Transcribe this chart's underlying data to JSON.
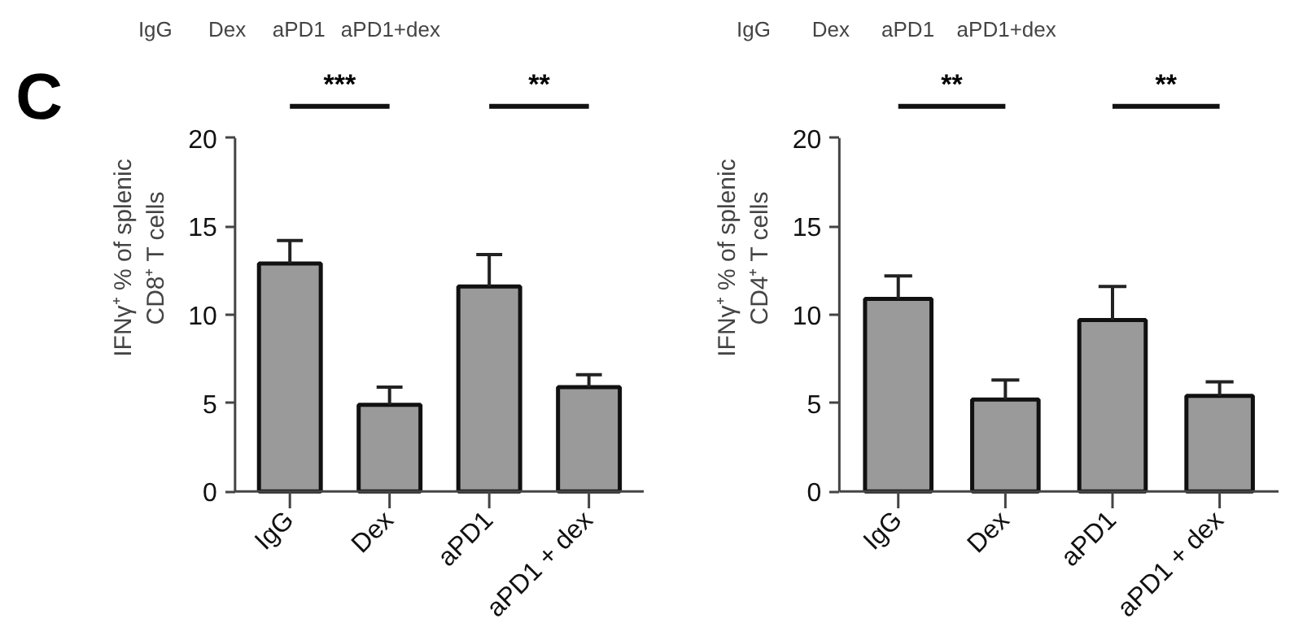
{
  "chart_data": [
    {
      "type": "bar",
      "title": "C",
      "ylabel": "IFNγ⁺ % of splenic\nCD8⁺ T cells",
      "categories": [
        "IgG",
        "Dex",
        "aPD1",
        "aPD1 + dex"
      ],
      "values": [
        12.9,
        4.9,
        11.6,
        5.9
      ],
      "errors": [
        [
          12.9,
          14.2
        ],
        [
          4.9,
          5.9
        ],
        [
          11.6,
          13.4
        ],
        [
          5.9,
          6.6
        ]
      ],
      "color": "#9a9a9a",
      "ylim": [
        0,
        20
      ],
      "yticks": [
        0,
        5,
        10,
        15,
        20
      ],
      "grid": false,
      "annotations": [
        "IgG",
        "Dex",
        "aPD1",
        "aPD1+dex",
        "***",
        "**"
      ]
    },
    {
      "type": "bar",
      "ylabel": "IFNγ⁺ % of splenic\nCD4⁺ T cells",
      "categories": [
        "IgG",
        "Dex",
        "aPD1",
        "aPD1 + dex"
      ],
      "values": [
        10.9,
        5.2,
        9.7,
        5.4
      ],
      "errors": [
        [
          10.9,
          12.2
        ],
        [
          5.2,
          6.3
        ],
        [
          9.7,
          11.6
        ],
        [
          5.4,
          6.2
        ]
      ],
      "color": "#9a9a9a",
      "ylim": [
        0,
        20
      ],
      "yticks": [
        0,
        5,
        10,
        15,
        20
      ],
      "grid": false,
      "annotations": [
        "IgG",
        "Dex",
        "aPD1",
        "aPD1+dex",
        "**",
        "**"
      ]
    }
  ]
}
